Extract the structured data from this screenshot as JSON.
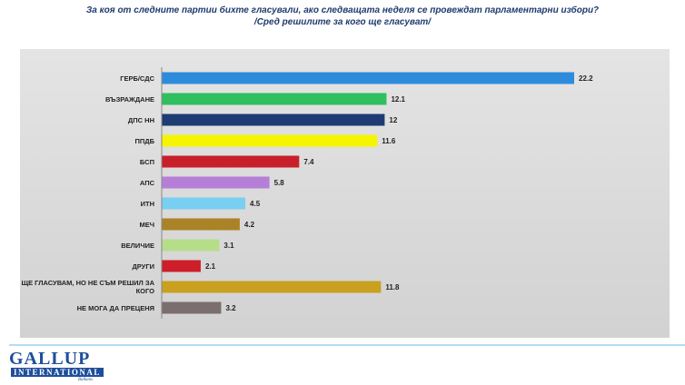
{
  "chart_data": {
    "type": "bar",
    "orientation": "horizontal",
    "title": "За коя от следните партии бихте  гласували,  ако следващата неделя се провеждат парламентарни избори?",
    "subtitle": "/Сред решилите за кого ще гласуват/",
    "categories": [
      "ГЕРБ/СДС",
      "ВЪЗРАЖДАНЕ",
      "ДПС НН",
      "ППДБ",
      "БСП",
      "АПС",
      "ИТН",
      "МЕЧ",
      "ВЕЛИЧИЕ",
      "ДРУГИ",
      "ЩЕ ГЛАСУВАМ, НО НЕ СЪМ РЕШИЛ ЗА КОГО",
      "НЕ МОГА ДА ПРЕЦЕНЯ"
    ],
    "values": [
      22.2,
      12.1,
      12,
      11.6,
      7.4,
      5.8,
      4.5,
      4.2,
      3.1,
      2.1,
      11.8,
      3.2
    ],
    "colors": [
      "#2e8bdb",
      "#2fbf5f",
      "#1f3b73",
      "#f5f500",
      "#c8202a",
      "#b57fd8",
      "#79cff2",
      "#a98326",
      "#b5dd8a",
      "#cc1f2a",
      "#c9a020",
      "#7a6e6e"
    ]
  },
  "logo": {
    "name": "GALLUP",
    "line2": "INTERNATIONAL",
    "line3": "Balkans"
  }
}
